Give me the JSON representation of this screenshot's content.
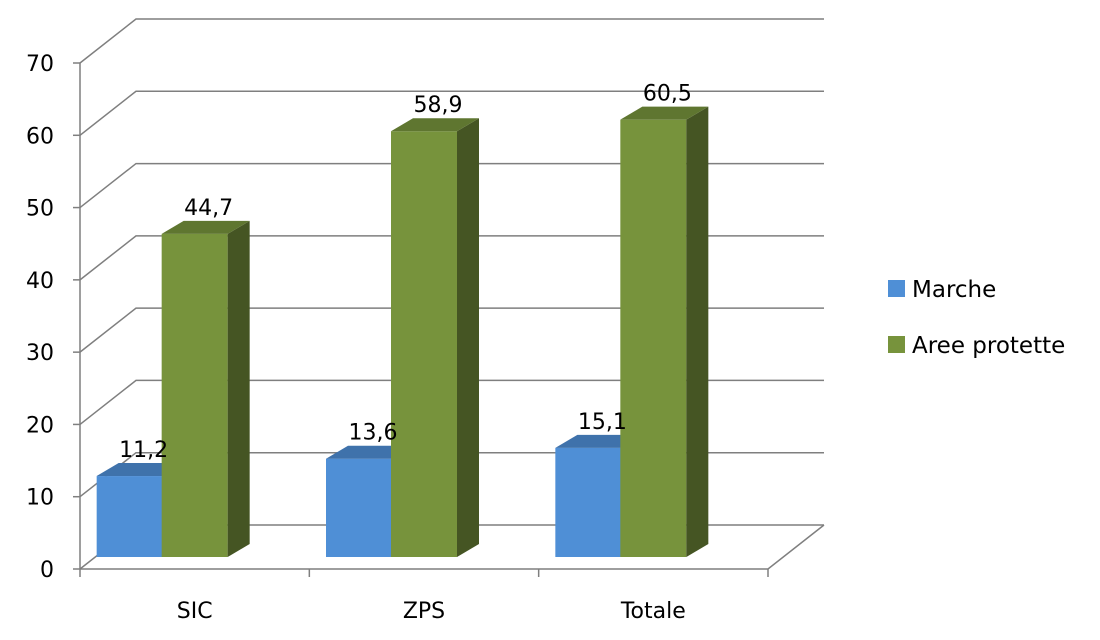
{
  "chart_data": {
    "type": "bar",
    "categories": [
      "SIC",
      "ZPS",
      "Totale"
    ],
    "series": [
      {
        "name": "Marche",
        "values": [
          11.2,
          13.6,
          15.1
        ],
        "labels": [
          "11,2",
          "13,6",
          "15,1"
        ],
        "color": "#4f8fd6"
      },
      {
        "name": "Aree protette",
        "values": [
          44.7,
          58.9,
          60.5
        ],
        "labels": [
          "44,7",
          "58,9",
          "60,5"
        ],
        "color": "#77933c"
      }
    ],
    "yticks": [
      "0",
      "10",
      "20",
      "30",
      "40",
      "50",
      "60",
      "70"
    ],
    "ylim": [
      0,
      70
    ],
    "grid": true,
    "legend_position": "right",
    "style": "3d-clustered-column"
  }
}
